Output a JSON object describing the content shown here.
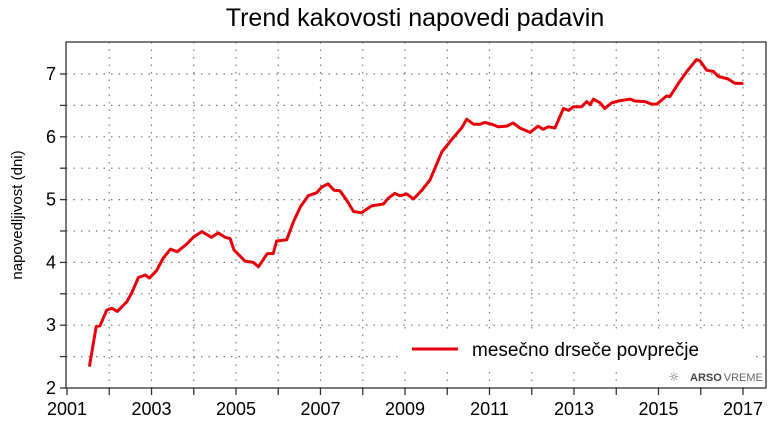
{
  "chart_data": {
    "type": "line",
    "title": "Trend kakovosti napovedi padavin",
    "xlabel": "",
    "ylabel": "napovedljivost (dni)",
    "xlim": [
      2001,
      2017.54
    ],
    "ylim": [
      2,
      7.5
    ],
    "x_ticks": [
      2001,
      2003,
      2005,
      2007,
      2009,
      2011,
      2013,
      2015,
      2017
    ],
    "x_tick_labels": [
      "2001",
      "2003",
      "2005",
      "2007",
      "2009",
      "2011",
      "2013",
      "2015",
      "2017"
    ],
    "y_ticks": [
      2,
      3,
      4,
      5,
      6,
      7
    ],
    "y_tick_labels": [
      "2",
      "3",
      "4",
      "5",
      "6",
      "7"
    ],
    "grid": true,
    "legend_position": "bottom-right",
    "series": [
      {
        "name": "mesečno drseče povprečje",
        "color": "#e8000b",
        "x": [
          2001.53,
          2001.69,
          2001.78,
          2001.94,
          2002.06,
          2002.19,
          2002.41,
          2002.53,
          2002.69,
          2002.85,
          2002.95,
          2003.12,
          2003.28,
          2003.45,
          2003.61,
          2003.83,
          2003.99,
          2004.19,
          2004.42,
          2004.58,
          2004.74,
          2004.86,
          2004.95,
          2005.21,
          2005.41,
          2005.53,
          2005.74,
          2005.88,
          2005.96,
          2006.2,
          2006.36,
          2006.53,
          2006.71,
          2006.91,
          2007.03,
          2007.18,
          2007.32,
          2007.46,
          2007.62,
          2007.78,
          2007.97,
          2008.21,
          2008.49,
          2008.6,
          2008.76,
          2008.88,
          2009.04,
          2009.2,
          2009.4,
          2009.59,
          2009.71,
          2009.87,
          2010.11,
          2010.34,
          2010.46,
          2010.62,
          2010.78,
          2010.89,
          2011.05,
          2011.21,
          2011.41,
          2011.56,
          2011.72,
          2011.96,
          2012.15,
          2012.27,
          2012.39,
          2012.55,
          2012.75,
          2012.87,
          2012.99,
          2013.18,
          2013.3,
          2013.38,
          2013.46,
          2013.62,
          2013.73,
          2013.89,
          2014.05,
          2014.33,
          2014.44,
          2014.68,
          2014.84,
          2014.96,
          2015.19,
          2015.27,
          2015.47,
          2015.67,
          2015.9,
          2015.98,
          2016.14,
          2016.3,
          2016.42,
          2016.65,
          2016.81,
          2017.01
        ],
        "y": [
          2.34,
          2.98,
          2.99,
          3.24,
          3.27,
          3.22,
          3.37,
          3.51,
          3.76,
          3.8,
          3.75,
          3.87,
          4.07,
          4.21,
          4.17,
          4.29,
          4.4,
          4.49,
          4.4,
          4.47,
          4.4,
          4.38,
          4.2,
          4.02,
          4.0,
          3.93,
          4.14,
          4.14,
          4.34,
          4.36,
          4.65,
          4.89,
          5.06,
          5.11,
          5.2,
          5.25,
          5.15,
          5.14,
          4.99,
          4.81,
          4.79,
          4.9,
          4.93,
          5.02,
          5.1,
          5.06,
          5.09,
          5.01,
          5.15,
          5.31,
          5.5,
          5.76,
          5.96,
          6.14,
          6.28,
          6.2,
          6.2,
          6.23,
          6.2,
          6.16,
          6.17,
          6.22,
          6.14,
          6.07,
          6.17,
          6.12,
          6.16,
          6.14,
          6.45,
          6.42,
          6.48,
          6.48,
          6.56,
          6.51,
          6.6,
          6.54,
          6.45,
          6.54,
          6.57,
          6.6,
          6.57,
          6.56,
          6.52,
          6.52,
          6.65,
          6.64,
          6.85,
          7.04,
          7.23,
          7.21,
          7.06,
          7.04,
          6.96,
          6.92,
          6.85,
          6.85
        ]
      }
    ]
  },
  "logo": {
    "text_bold": "ARSO",
    "text_light": "VREME",
    "icon": "snowflake-sun-icon"
  }
}
